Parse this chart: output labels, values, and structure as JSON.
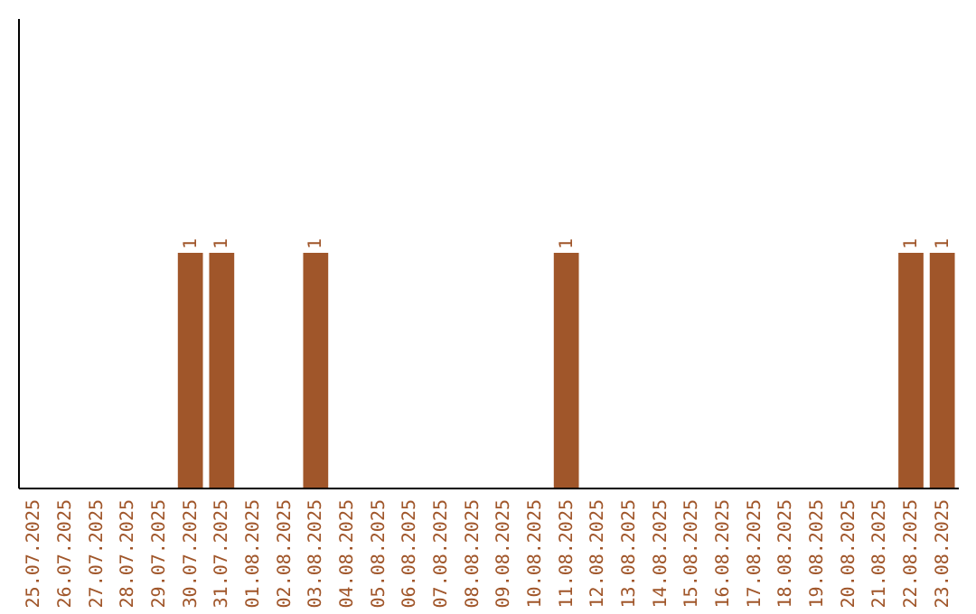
{
  "chart_data": {
    "type": "bar",
    "categories": [
      "25.07.2025",
      "26.07.2025",
      "27.07.2025",
      "28.07.2025",
      "29.07.2025",
      "30.07.2025",
      "31.07.2025",
      "01.08.2025",
      "02.08.2025",
      "03.08.2025",
      "04.08.2025",
      "05.08.2025",
      "06.08.2025",
      "07.08.2025",
      "08.08.2025",
      "09.08.2025",
      "10.08.2025",
      "11.08.2025",
      "12.08.2025",
      "13.08.2025",
      "14.08.2025",
      "15.08.2025",
      "16.08.2025",
      "17.08.2025",
      "18.08.2025",
      "19.08.2025",
      "20.08.2025",
      "21.08.2025",
      "22.08.2025",
      "23.08.2025"
    ],
    "values": [
      0,
      0,
      0,
      0,
      0,
      1,
      1,
      0,
      0,
      1,
      0,
      0,
      0,
      0,
      0,
      0,
      0,
      1,
      0,
      0,
      0,
      0,
      0,
      0,
      0,
      0,
      0,
      0,
      1,
      1
    ],
    "value_labels": [
      null,
      null,
      null,
      null,
      null,
      "1",
      "1",
      null,
      null,
      "1",
      null,
      null,
      null,
      null,
      null,
      null,
      null,
      "1",
      null,
      null,
      null,
      null,
      null,
      null,
      null,
      null,
      null,
      null,
      "1",
      "1"
    ],
    "color": "#a0562a",
    "ylim": [
      0,
      2
    ],
    "tick_labels": "x"
  }
}
